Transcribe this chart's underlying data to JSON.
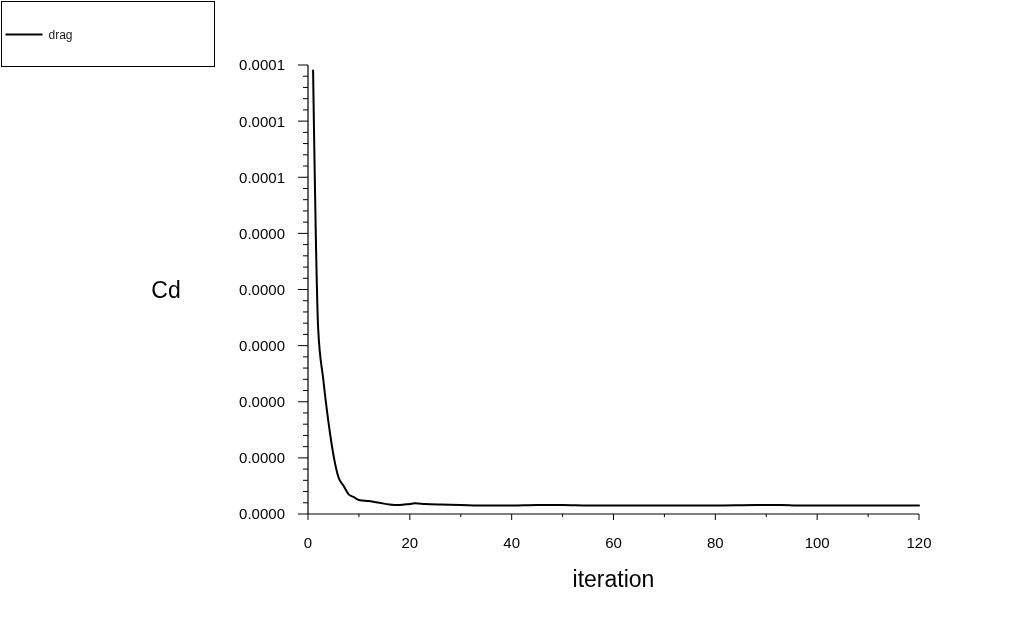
{
  "chart_data": {
    "type": "line",
    "xlabel": "iteration",
    "ylabel": "Cd",
    "x": [
      1,
      2,
      3,
      4,
      5,
      6,
      7,
      8,
      9,
      10,
      12,
      14,
      16,
      18,
      20,
      21,
      23,
      26,
      30,
      35,
      40,
      45,
      50,
      55,
      60,
      70,
      80,
      88,
      93,
      96,
      100,
      110,
      120
    ],
    "series": [
      {
        "name": "drag",
        "color": "#000000",
        "values": [
          7.9e-05,
          3.3e-05,
          2.4e-05,
          1.65e-05,
          1.05e-05,
          6.5e-06,
          5e-06,
          3.5e-06,
          3e-06,
          2.5e-06,
          2.3e-06,
          2e-06,
          1.7e-06,
          1.6e-06,
          1.8e-06,
          1.9e-06,
          1.8e-06,
          1.7e-06,
          1.6e-06,
          1.5e-06,
          1.5e-06,
          1.6e-06,
          1.6e-06,
          1.5e-06,
          1.5e-06,
          1.5e-06,
          1.5e-06,
          1.6e-06,
          1.6e-06,
          1.5e-06,
          1.5e-06,
          1.5e-06,
          1.5e-06
        ]
      }
    ],
    "xlim": [
      0,
      120
    ],
    "xticks": [
      0,
      {
        "value": 10,
        "label": null
      },
      20,
      {
        "value": 30,
        "label": null
      },
      40,
      {
        "value": 50,
        "label": null
      },
      60,
      {
        "value": 70,
        "label": null
      },
      80,
      {
        "value": 90,
        "label": null
      },
      100,
      {
        "value": 110,
        "label": null
      },
      120
    ],
    "ylim": [
      0,
      8e-05
    ],
    "yticks": [
      {
        "value": 0,
        "label": "0.0000"
      },
      {
        "value": 2e-06,
        "label": null
      },
      {
        "value": 4e-06,
        "label": null
      },
      {
        "value": 6e-06,
        "label": null
      },
      {
        "value": 8e-06,
        "label": null
      },
      {
        "value": 1e-05,
        "label": "0.0000"
      },
      {
        "value": 1.2e-05,
        "label": null
      },
      {
        "value": 1.4e-05,
        "label": null
      },
      {
        "value": 1.6e-05,
        "label": null
      },
      {
        "value": 1.8e-05,
        "label": null
      },
      {
        "value": 2e-05,
        "label": "0.0000"
      },
      {
        "value": 2.2e-05,
        "label": null
      },
      {
        "value": 2.4e-05,
        "label": null
      },
      {
        "value": 2.6e-05,
        "label": null
      },
      {
        "value": 2.8e-05,
        "label": null
      },
      {
        "value": 3e-05,
        "label": "0.0000"
      },
      {
        "value": 3.2e-05,
        "label": null
      },
      {
        "value": 3.4e-05,
        "label": null
      },
      {
        "value": 3.6e-05,
        "label": null
      },
      {
        "value": 3.8e-05,
        "label": null
      },
      {
        "value": 4e-05,
        "label": "0.0000"
      },
      {
        "value": 4.2e-05,
        "label": null
      },
      {
        "value": 4.4e-05,
        "label": null
      },
      {
        "value": 4.6e-05,
        "label": null
      },
      {
        "value": 4.8e-05,
        "label": null
      },
      {
        "value": 5e-05,
        "label": "0.0000"
      },
      {
        "value": 5.2e-05,
        "label": null
      },
      {
        "value": 5.4e-05,
        "label": null
      },
      {
        "value": 5.6e-05,
        "label": null
      },
      {
        "value": 5.8e-05,
        "label": null
      },
      {
        "value": 6e-05,
        "label": "0.0001"
      },
      {
        "value": 6.2e-05,
        "label": null
      },
      {
        "value": 6.4e-05,
        "label": null
      },
      {
        "value": 6.6e-05,
        "label": null
      },
      {
        "value": 6.8e-05,
        "label": null
      },
      {
        "value": 7e-05,
        "label": "0.0001"
      },
      {
        "value": 7.2e-05,
        "label": null
      },
      {
        "value": 7.4e-05,
        "label": null
      },
      {
        "value": 7.6e-05,
        "label": null
      },
      {
        "value": 7.8e-05,
        "label": null
      },
      {
        "value": 8e-05,
        "label": "0.0001"
      }
    ],
    "legend": "top left",
    "line_style": "solid"
  }
}
